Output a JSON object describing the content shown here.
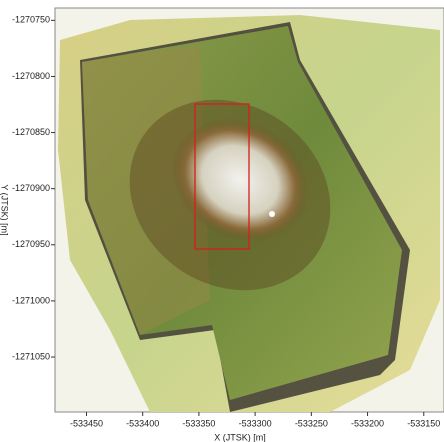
{
  "chart_data": {
    "type": "map",
    "xlabel": "X (JTSK) [m]",
    "ylabel": "Y (JTSK) [m]",
    "xlim": [
      -533478,
      -533132
    ],
    "ylim": [
      -1271099,
      -1270739
    ],
    "xticks": [
      -533450,
      -533400,
      -533350,
      -533300,
      -533250,
      -533200,
      -533150
    ],
    "yticks": [
      -1270750,
      -1270800,
      -1270850,
      -1270900,
      -1270950,
      -1271000,
      -1271050
    ]
  }
}
